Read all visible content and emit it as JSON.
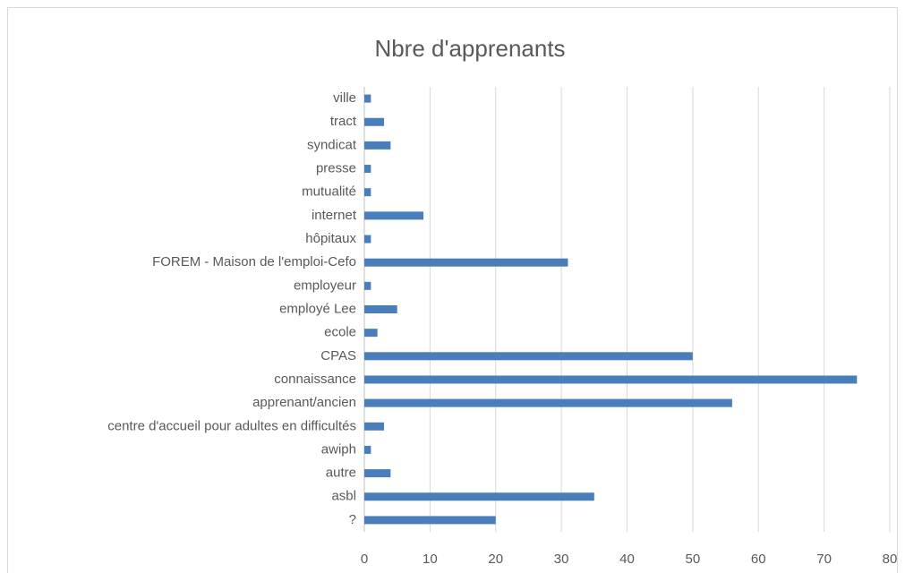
{
  "chart_data": {
    "type": "barh",
    "title": "Nbre d'apprenants",
    "categories": [
      "ville",
      "tract",
      "syndicat",
      "presse",
      "mutualité",
      "internet",
      "hôpitaux",
      "FOREM - Maison de l'emploi-Cefo",
      "employeur",
      "employé Lee",
      "ecole",
      "CPAS",
      "connaissance",
      "apprenant/ancien",
      "centre d'accueil pour adultes en difficultés",
      "awiph",
      "autre",
      "asbl",
      "?"
    ],
    "values": [
      1,
      3,
      4,
      1,
      1,
      9,
      1,
      31,
      1,
      5,
      2,
      50,
      75,
      56,
      3,
      1,
      4,
      35,
      20
    ],
    "color": "#4a7ebb",
    "xlim": [
      0,
      80
    ],
    "xticks": [
      0,
      10,
      20,
      30,
      40,
      50,
      60,
      70,
      80
    ],
    "grid": true
  }
}
